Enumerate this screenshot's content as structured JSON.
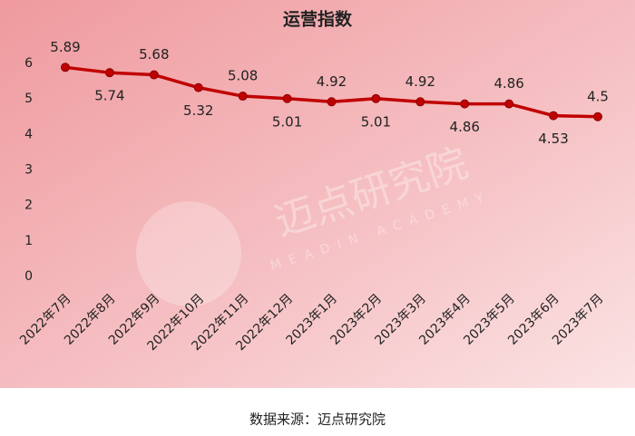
{
  "chart_data": {
    "type": "line",
    "title": "运营指数",
    "categories": [
      "2022年7月",
      "2022年8月",
      "2022年9月",
      "2022年10月",
      "2022年11月",
      "2022年12月",
      "2023年1月",
      "2023年2月",
      "2023年3月",
      "2023年4月",
      "2023年5月",
      "2023年6月",
      "2023年7月"
    ],
    "series": [
      {
        "name": "运营指数",
        "color": "#c00000",
        "values": [
          5.89,
          5.74,
          5.68,
          5.32,
          5.08,
          5.01,
          4.92,
          5.01,
          4.92,
          4.86,
          4.86,
          4.53,
          4.5
        ]
      }
    ],
    "ylim": [
      0,
      6
    ],
    "yticks": [
      0,
      1,
      2,
      3,
      4,
      5,
      6
    ],
    "grid": false,
    "watermark": "迈点研究院",
    "watermark_sub": "MEADIN ACADEMY",
    "source": "数据来源：迈点研究院"
  }
}
